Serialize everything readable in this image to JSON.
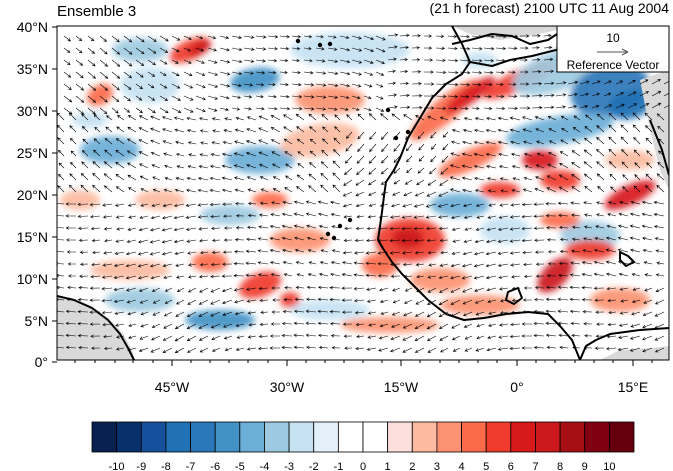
{
  "header": {
    "ensemble_label": "Ensemble 3",
    "forecast_label": "(21 h forecast) 2100 UTC 11 Aug 2004"
  },
  "reference_vector": {
    "magnitude": "10",
    "label": "Reference Vector"
  },
  "axes": {
    "lat_labels": [
      "40°N",
      "35°N",
      "30°N",
      "25°N",
      "20°N",
      "15°N",
      "10°N",
      "5°N",
      "0°"
    ],
    "lon_labels": [
      "45°W",
      "30°W",
      "15°W",
      "0°",
      "15°E"
    ]
  },
  "colorbar": {
    "labels": [
      "-10",
      "-9",
      "-8",
      "-7",
      "-6",
      "-5",
      "-4",
      "-3",
      "-2",
      "-1",
      "0",
      "1",
      "2",
      "3",
      "4",
      "5",
      "6",
      "7",
      "8",
      "9",
      "10"
    ],
    "colors": [
      "#08214f",
      "#08306b",
      "#16509c",
      "#2171b5",
      "#2a78b9",
      "#4292c6",
      "#6baed6",
      "#9ecae1",
      "#c6e2f2",
      "#e4f1f9",
      "#ffffff",
      "#ffffff",
      "#fde0dd",
      "#fcbba1",
      "#fc9272",
      "#fb6a4a",
      "#ef3b2c",
      "#d7191c",
      "#cb181d",
      "#a50f15",
      "#800012",
      "#67000d"
    ]
  },
  "map": {
    "land_mask_color": "#d9d9d9",
    "coastline_color": "#000000",
    "wind_arrow_color": "#000000"
  }
}
